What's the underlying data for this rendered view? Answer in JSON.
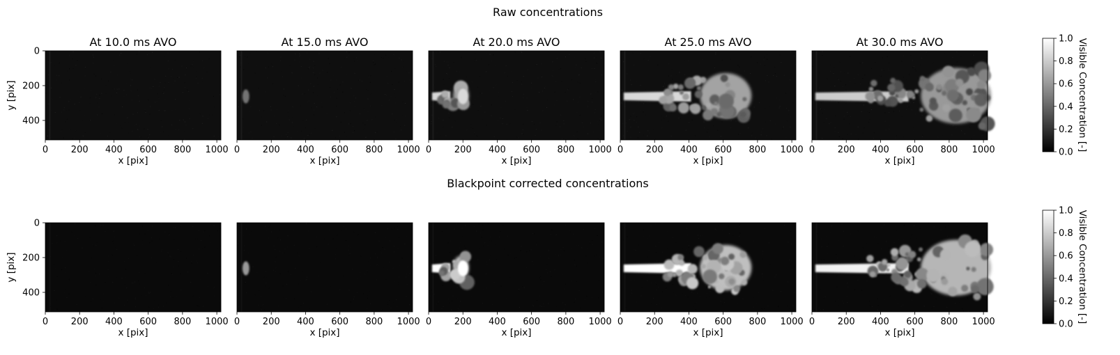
{
  "chart_data": [
    {
      "type": "heatmap",
      "title": "Raw concentrations",
      "xlabel": "x [pix]",
      "ylabel": "y [pix]",
      "xlim": [
        0,
        1024
      ],
      "ylim": [
        512,
        0
      ],
      "xticks": [
        "0",
        "200",
        "400",
        "600",
        "800",
        "1000"
      ],
      "yticks": [
        "0",
        "200",
        "400"
      ],
      "colormap": "gray",
      "colorbar": {
        "label": "Visible Concentration [-]",
        "range": [
          0.0,
          1.0
        ],
        "ticks": [
          "0.0",
          "0.2",
          "0.4",
          "0.6",
          "0.8",
          "1.0"
        ]
      },
      "panels": [
        {
          "title": "At 10.0 ms AVO",
          "time_ms": 10.0,
          "jet_tip_x": 0,
          "peak": 0.0,
          "background": 0.06
        },
        {
          "title": "At 15.0 ms AVO",
          "time_ms": 15.0,
          "jet_tip_x": 70,
          "peak": 0.45,
          "background": 0.06
        },
        {
          "title": "At 20.0 ms AVO",
          "time_ms": 20.0,
          "jet_tip_x": 230,
          "peak": 0.85,
          "background": 0.06
        },
        {
          "title": "At 25.0 ms AVO",
          "time_ms": 25.0,
          "jet_tip_x": 750,
          "peak": 0.85,
          "background": 0.06
        },
        {
          "title": "At 30.0 ms AVO",
          "time_ms": 30.0,
          "jet_tip_x": 1024,
          "peak": 0.8,
          "background": 0.06
        }
      ]
    },
    {
      "type": "heatmap",
      "title": "Blackpoint corrected concentrations",
      "xlabel": "x [pix]",
      "ylabel": "y [pix]",
      "xlim": [
        0,
        1024
      ],
      "ylim": [
        512,
        0
      ],
      "xticks": [
        "0",
        "200",
        "400",
        "600",
        "800",
        "1000"
      ],
      "yticks": [
        "0",
        "200",
        "400"
      ],
      "colormap": "gray",
      "colorbar": {
        "label": "Visible Concentration [-]",
        "range": [
          0.0,
          1.0
        ],
        "ticks": [
          "0.0",
          "0.2",
          "0.4",
          "0.6",
          "0.8",
          "1.0"
        ]
      },
      "panels": [
        {
          "title": "",
          "time_ms": 10.0,
          "jet_tip_x": 0,
          "peak": 0.0,
          "background": 0.04
        },
        {
          "title": "",
          "time_ms": 15.0,
          "jet_tip_x": 70,
          "peak": 0.6,
          "background": 0.04
        },
        {
          "title": "",
          "time_ms": 20.0,
          "jet_tip_x": 230,
          "peak": 1.0,
          "background": 0.04
        },
        {
          "title": "",
          "time_ms": 25.0,
          "jet_tip_x": 750,
          "peak": 1.0,
          "background": 0.04
        },
        {
          "title": "",
          "time_ms": 30.0,
          "jet_tip_x": 1024,
          "peak": 0.95,
          "background": 0.04
        }
      ]
    }
  ]
}
